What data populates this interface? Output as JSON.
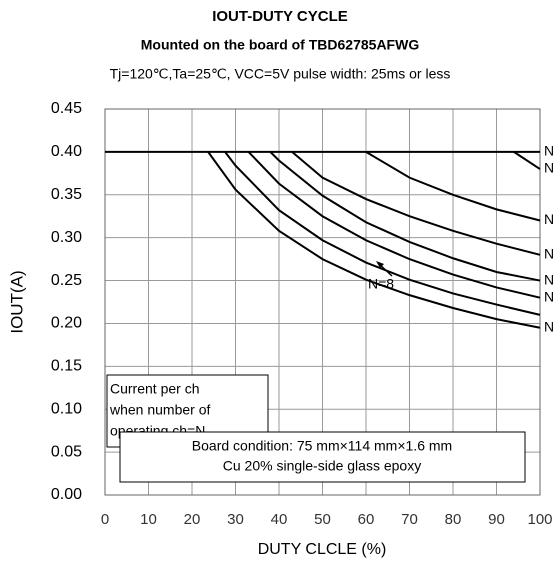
{
  "chart_data": {
    "type": "line",
    "title": "IOUT-DUTY CYCLE",
    "subtitle": "Mounted on the board of TBD62785AFWG",
    "conditions": "Tj=120℃,Ta=25℃, VCC=5V pulse width: 25ms or less",
    "x_label": "DUTY CLCLE (%)",
    "y_label": "IOUT(A)",
    "xlim": [
      0,
      100
    ],
    "xticks": [
      0,
      10,
      20,
      30,
      40,
      50,
      60,
      70,
      80,
      90,
      100
    ],
    "ylim": [
      0,
      0.45
    ],
    "yticks": [
      {
        "value": 0,
        "label": "0.00"
      },
      0.05,
      {
        "value": 0.1,
        "label": "0.10"
      },
      0.15,
      {
        "value": 0.2,
        "label": "0.20"
      },
      0.25,
      {
        "value": 0.3,
        "label": "0.30"
      },
      0.35,
      {
        "value": 0.4,
        "label": "0.40"
      },
      0.45
    ],
    "grid": true,
    "color": "#000000",
    "series": [
      {
        "name": "N",
        "x": [
          0,
          100
        ],
        "values": [
          0.4,
          0.4
        ]
      },
      {
        "name": "N",
        "x": [
          94,
          100
        ],
        "values": [
          0.4,
          0.38
        ]
      },
      {
        "name": "N",
        "x": [
          60,
          70,
          80,
          90,
          100
        ],
        "values": [
          0.4,
          0.37,
          0.35,
          0.333,
          0.32
        ]
      },
      {
        "name": "N",
        "x": [
          43,
          50,
          60,
          70,
          80,
          90,
          100
        ],
        "values": [
          0.4,
          0.37,
          0.345,
          0.325,
          0.308,
          0.293,
          0.28
        ]
      },
      {
        "name": "N",
        "x": [
          38,
          40,
          50,
          60,
          70,
          80,
          90,
          100
        ],
        "values": [
          0.4,
          0.39,
          0.349,
          0.318,
          0.295,
          0.276,
          0.26,
          0.25
        ]
      },
      {
        "name": "N",
        "x": [
          33,
          40,
          50,
          60,
          70,
          80,
          90,
          100
        ],
        "values": [
          0.4,
          0.363,
          0.325,
          0.297,
          0.275,
          0.257,
          0.242,
          0.23
        ]
      },
      {
        "x": [
          27.6,
          30,
          40,
          50,
          60,
          70,
          80,
          90,
          100
        ],
        "values": [
          0.4,
          0.384,
          0.332,
          0.297,
          0.271,
          0.251,
          0.235,
          0.222,
          0.21
        ]
      },
      {
        "name": "N",
        "x": [
          23.7,
          30,
          40,
          50,
          60,
          70,
          80,
          90,
          100
        ],
        "values": [
          0.4,
          0.356,
          0.308,
          0.275,
          0.251,
          0.233,
          0.218,
          0.205,
          0.195
        ]
      }
    ],
    "annotations": {
      "n8": "N=8",
      "note_lines": [
        "Current per ch",
        "when number of",
        "operating ch=N"
      ],
      "board_lines": [
        "Board condition: 75 mm×114 mm×1.6 mm",
        "Cu 20% single-side glass epoxy"
      ]
    }
  }
}
